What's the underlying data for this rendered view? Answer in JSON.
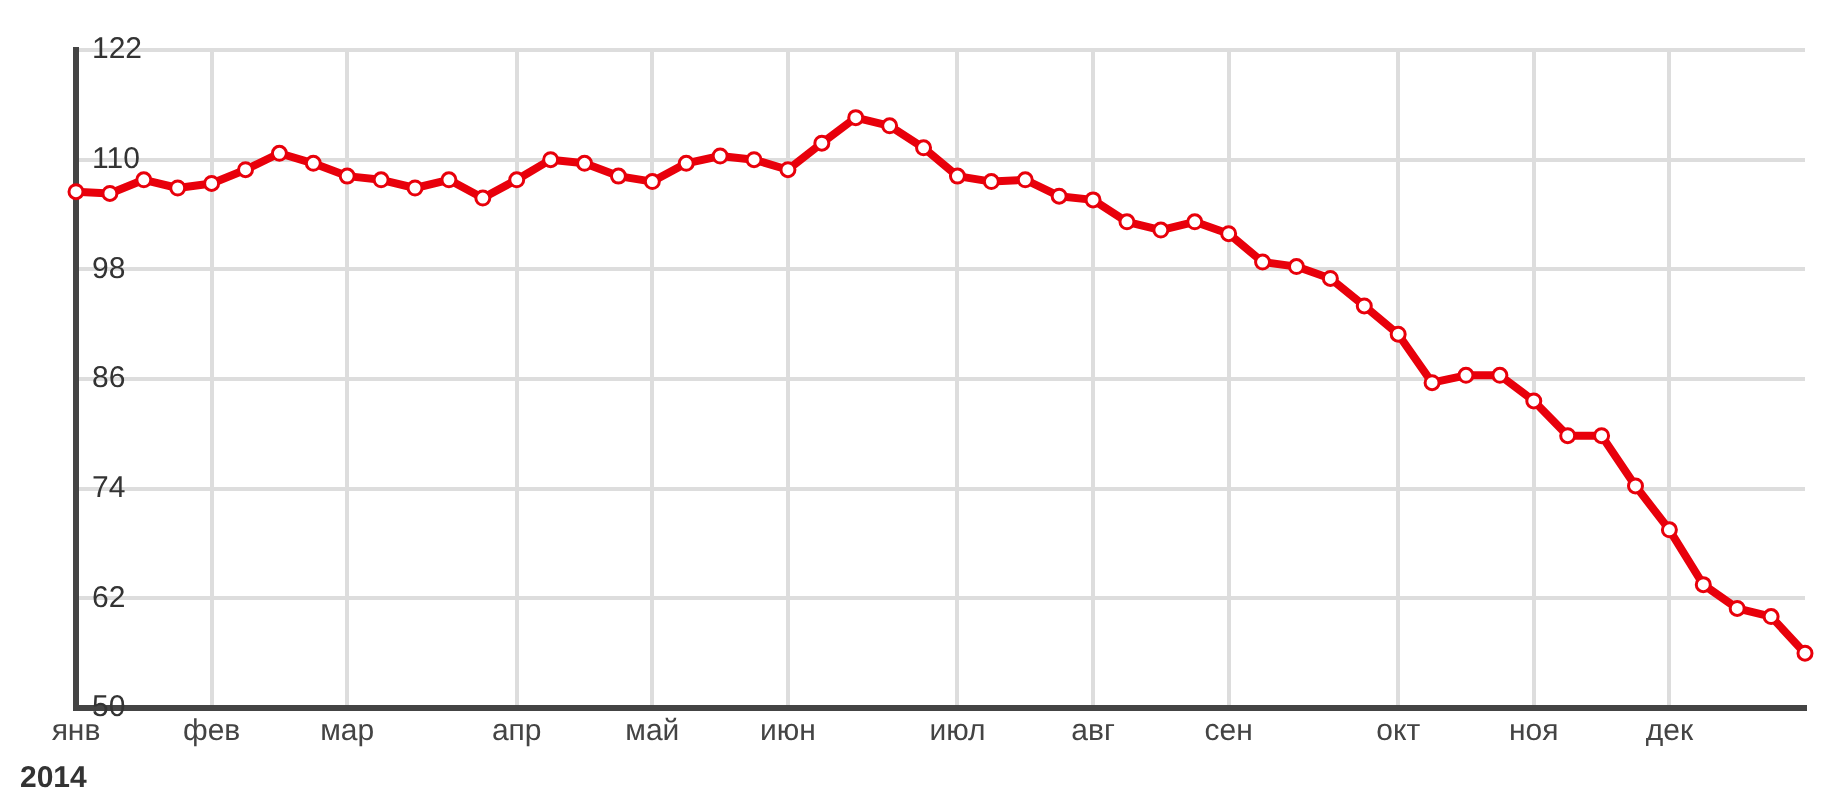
{
  "chart_data": {
    "type": "line",
    "xlabel": "2014",
    "categories": [
      "янв",
      null,
      null,
      null,
      "фев",
      null,
      null,
      null,
      "мар",
      null,
      null,
      null,
      null,
      "апр",
      null,
      null,
      null,
      "май",
      null,
      null,
      null,
      "июн",
      null,
      null,
      null,
      null,
      "июл",
      null,
      null,
      null,
      "авг",
      null,
      null,
      null,
      "сен",
      null,
      null,
      null,
      null,
      "окт",
      null,
      null,
      null,
      "ноя",
      null,
      null,
      null,
      "дек",
      null,
      null,
      null,
      null
    ],
    "series": [
      {
        "color": "#e8000b",
        "values": [
          106.5,
          106.3,
          107.8,
          106.9,
          107.4,
          108.9,
          110.7,
          109.6,
          108.2,
          107.8,
          106.9,
          107.8,
          105.8,
          107.8,
          110.0,
          109.6,
          108.2,
          107.6,
          109.6,
          110.4,
          110.0,
          108.9,
          111.8,
          114.6,
          113.7,
          111.3,
          108.2,
          107.6,
          107.8,
          106.0,
          105.6,
          103.2,
          102.3,
          103.2,
          101.9,
          98.8,
          98.3,
          97.0,
          94.0,
          90.9,
          85.6,
          86.4,
          86.4,
          83.6,
          79.8,
          79.8,
          74.3,
          69.5,
          63.5,
          60.9,
          60.0,
          56.0
        ]
      }
    ],
    "ylim": [
      50,
      122
    ],
    "yticks": [
      50,
      62,
      74,
      86,
      98,
      110,
      122
    ],
    "grid": true,
    "legend": false,
    "marker": "circle",
    "line_style": "solid"
  }
}
